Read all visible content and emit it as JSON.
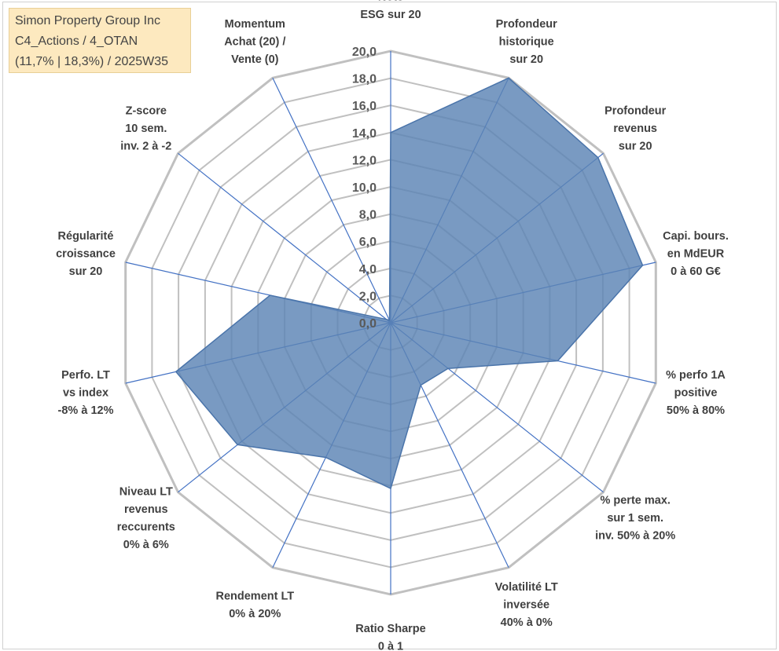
{
  "title": {
    "lines": [
      "Simon Property Group Inc",
      "C4_Actions / 4_OTAN",
      "(11,7% | 18,3%) / 2025W35"
    ]
  },
  "colors": {
    "fill": "#5b84b5",
    "stroke": "#4a74aa",
    "spoke": "#4472c4",
    "grid": "#c0c0c0",
    "title_bg": "#fde9bf"
  },
  "chart_data": {
    "type": "radar",
    "rmin": 0,
    "rmax": 20,
    "tick_step": 2,
    "tick_labels": [
      "0,0",
      "2,0",
      "4,0",
      "6,0",
      "8,0",
      "10,0",
      "12,0",
      "14,0",
      "16,0",
      "18,0",
      "20,0"
    ],
    "grid": true,
    "legend": "none",
    "axes": [
      {
        "label": [
          "Note",
          "ESG sur 20"
        ],
        "value": 14.0
      },
      {
        "label": [
          "Profondeur",
          "historique",
          "sur 20"
        ],
        "value": 20.0
      },
      {
        "label": [
          "Profondeur",
          "revenus",
          "sur 20"
        ],
        "value": 19.5
      },
      {
        "label": [
          "Capi. bours.",
          "en MdEUR",
          "0 à 60 G€"
        ],
        "value": 19.0
      },
      {
        "label": [
          "% perfo 1A",
          "positive",
          "50% à 80%"
        ],
        "value": 12.6
      },
      {
        "label": [
          "% perte max.",
          "sur 1 sem.",
          "inv. 50% à 20%"
        ],
        "value": 5.4
      },
      {
        "label": [
          "Volatilité LT",
          "inversée",
          "40% à 0%"
        ],
        "value": 5.1
      },
      {
        "label": [
          "Ratio Sharpe",
          "0 à 1"
        ],
        "value": 12.2
      },
      {
        "label": [
          "Rendement LT",
          "0% à 20%"
        ],
        "value": 11.0
      },
      {
        "label": [
          "Niveau LT",
          "revenus",
          "reccurents",
          "0% à 6%"
        ],
        "value": 14.4
      },
      {
        "label": [
          "Perfo. LT",
          "vs index",
          "-8% à 12%"
        ],
        "value": 16.2
      },
      {
        "label": [
          "Régularité",
          "croissance",
          "sur 20"
        ],
        "value": 9.1
      },
      {
        "label": [
          "Z-score",
          "10 sem.",
          "inv. 2 à -2"
        ],
        "value": 0.4
      },
      {
        "label": [
          "Momentum",
          "Achat (20) /",
          "Vente (0)"
        ],
        "value": 0.2
      }
    ]
  }
}
